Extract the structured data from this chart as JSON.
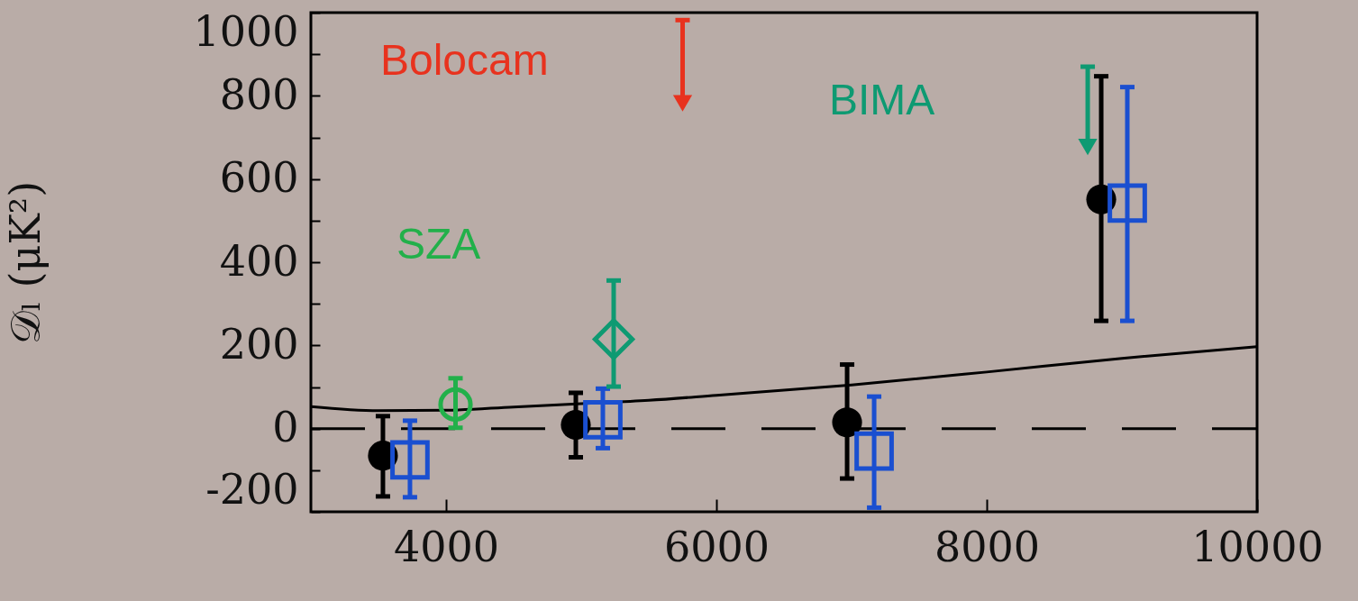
{
  "chart_data": {
    "type": "scatter",
    "ylabel": "𝒟ₗ (μK²)",
    "xlim": [
      3000,
      10000
    ],
    "xticks": [
      4000,
      6000,
      8000,
      10000
    ],
    "ylim": [
      -200,
      1000
    ],
    "yticks": [
      -200,
      {
        "value": -100,
        "label": null
      },
      0,
      {
        "value": 100,
        "label": null
      },
      200,
      {
        "value": 300,
        "label": null
      },
      400,
      {
        "value": 500,
        "label": null
      },
      600,
      {
        "value": 700,
        "label": null
      },
      800,
      {
        "value": 900,
        "label": null
      },
      1000
    ],
    "grid": false,
    "ref_lines": [
      {
        "axis": "y",
        "value": 0,
        "color": "#000000",
        "line_style": "dashed"
      }
    ],
    "series": [
      {
        "type": "line",
        "color": "#000000",
        "x": [
          3000,
          3500,
          4000,
          4500,
          5000,
          5500,
          6000,
          7000,
          8000,
          9000,
          10000
        ],
        "values": [
          53,
          43,
          44,
          52,
          60,
          68,
          80,
          105,
          136,
          169,
          197
        ]
      },
      {
        "color": "#000000",
        "marker": "circle",
        "x": [
          3533,
          4960,
          6967,
          8847
        ],
        "values": [
          -65,
          9,
          15,
          551
        ],
        "errors": [
          [
            -163,
            30
          ],
          [
            -69,
            86
          ],
          [
            -120,
            154
          ],
          [
            259,
            847
          ]
        ]
      },
      {
        "color": "#1a4fd0",
        "marker": "square",
        "x": [
          3733,
          5160,
          7167,
          9040
        ],
        "values": [
          -75,
          21,
          -54,
          542
        ],
        "errors": [
          [
            -165,
            19
          ],
          [
            -47,
            96
          ],
          [
            -190,
            77
          ],
          [
            259,
            821
          ]
        ]
      },
      {
        "name": "SZA",
        "color": "#22b04a",
        "marker": "circle",
        "x": [
          4070
        ],
        "values": [
          58
        ],
        "errors": [
          [
            2,
            121
          ]
        ]
      },
      {
        "name": "BIMA",
        "color": "#0e9a72",
        "marker": "diamond",
        "x": [
          5240
        ],
        "values": [
          215
        ],
        "errors": [
          [
            101,
            356
          ]
        ]
      },
      {
        "color": "#0e9a72",
        "marker": "triangle",
        "x": [
          8747
        ],
        "values": [
          677
        ],
        "errors": [
          [
            677,
            870
          ]
        ]
      },
      {
        "name": "Bolocam",
        "color": "#e8321e",
        "marker": "triangle",
        "x": [
          5750
        ],
        "values": [
          782
        ],
        "errors": [
          [
            782,
            982
          ]
        ]
      }
    ]
  }
}
